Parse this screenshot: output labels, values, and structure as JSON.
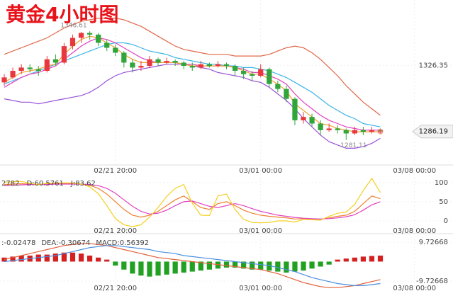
{
  "chart_data": [
    {
      "type": "candlestick",
      "title": "黄金4小时图",
      "x": [
        0,
        1,
        2,
        3,
        4,
        5,
        6,
        7,
        8,
        9,
        10,
        11,
        12,
        13,
        14,
        15,
        16,
        17,
        18,
        19,
        20,
        21,
        22,
        23,
        24,
        25,
        26,
        27,
        28,
        29,
        30,
        31,
        32,
        33,
        34,
        35,
        36,
        37,
        38,
        39,
        40,
        41,
        42,
        43,
        44
      ],
      "ohlc": [
        [
          1316,
          1321,
          1314,
          1319
        ],
        [
          1319,
          1325,
          1318,
          1323
        ],
        [
          1323,
          1327,
          1321,
          1325
        ],
        [
          1325,
          1327,
          1322,
          1324
        ],
        [
          1324,
          1326,
          1320,
          1323
        ],
        [
          1323,
          1332,
          1322,
          1330
        ],
        [
          1330,
          1333,
          1326,
          1328
        ],
        [
          1328,
          1340,
          1327,
          1338
        ],
        [
          1338,
          1345,
          1336,
          1343
        ],
        [
          1343,
          1346.61,
          1340,
          1346
        ],
        [
          1346,
          1347,
          1342,
          1345
        ],
        [
          1345,
          1346,
          1338,
          1340
        ],
        [
          1340,
          1342,
          1335,
          1337
        ],
        [
          1337,
          1339,
          1332,
          1334
        ],
        [
          1334,
          1335,
          1325,
          1328
        ],
        [
          1328,
          1330,
          1322,
          1325
        ],
        [
          1325,
          1329,
          1323,
          1326
        ],
        [
          1326,
          1332,
          1325,
          1330
        ],
        [
          1330,
          1331,
          1326,
          1328
        ],
        [
          1328,
          1331,
          1327,
          1329
        ],
        [
          1329,
          1330,
          1326,
          1328
        ],
        [
          1328,
          1329,
          1324,
          1326
        ],
        [
          1326,
          1328,
          1323,
          1325
        ],
        [
          1325,
          1329,
          1324,
          1327
        ],
        [
          1327,
          1328,
          1325,
          1326
        ],
        [
          1326,
          1329,
          1325,
          1327
        ],
        [
          1327,
          1328,
          1324,
          1326
        ],
        [
          1326,
          1327,
          1320,
          1323
        ],
        [
          1323,
          1325,
          1318,
          1321
        ],
        [
          1321,
          1323,
          1317,
          1320
        ],
        [
          1320,
          1327,
          1319,
          1324
        ],
        [
          1324,
          1325,
          1313,
          1315
        ],
        [
          1315,
          1317,
          1310,
          1312
        ],
        [
          1312,
          1314,
          1304,
          1306
        ],
        [
          1306,
          1307,
          1290,
          1293
        ],
        [
          1293,
          1298,
          1291,
          1295
        ],
        [
          1295,
          1297,
          1289,
          1291
        ],
        [
          1291,
          1293,
          1284,
          1287
        ],
        [
          1287,
          1291,
          1286,
          1288
        ],
        [
          1288,
          1290,
          1285,
          1287
        ],
        [
          1287,
          1288,
          1281.11,
          1285
        ],
        [
          1285,
          1289,
          1284,
          1287
        ],
        [
          1287,
          1289,
          1284,
          1286
        ],
        [
          1286,
          1289,
          1285,
          1287
        ],
        [
          1287,
          1288,
          1285,
          1286.19
        ]
      ],
      "up_color": "#e8383d",
      "down_color": "#2fa53a",
      "series": [
        {
          "color": "#e06848",
          "values": [
            1333,
            1335,
            1337,
            1339,
            1341,
            1343,
            1346,
            1349,
            1351,
            1353,
            1354,
            1355,
            1355,
            1355,
            1354,
            1352,
            1350,
            1347,
            1344,
            1341,
            1338,
            1336,
            1335,
            1334,
            1333,
            1333,
            1333,
            1332,
            1332,
            1332,
            1332,
            1333,
            1335,
            1337,
            1338,
            1337,
            1334,
            1330,
            1325,
            1320,
            1314,
            1309,
            1304,
            1300,
            1296
          ]
        },
        {
          "color": "#3cb4e6",
          "values": [
            1315,
            1317,
            1319,
            1321,
            1323,
            1325,
            1327,
            1329,
            1331,
            1333,
            1335,
            1337,
            1339,
            1340,
            1340,
            1339,
            1337,
            1335,
            1334,
            1333,
            1331,
            1330,
            1329,
            1328,
            1327,
            1327,
            1326,
            1326,
            1325,
            1325,
            1324,
            1323,
            1321,
            1319,
            1316,
            1313,
            1310,
            1306,
            1302,
            1299,
            1296,
            1294,
            1291,
            1290,
            1289
          ]
        },
        {
          "color": "#9a52d8",
          "values": [
            1306,
            1305,
            1304,
            1304,
            1303,
            1304,
            1305,
            1306,
            1307,
            1308,
            1310,
            1313,
            1317,
            1320,
            1322,
            1323,
            1324,
            1325,
            1326,
            1327,
            1327,
            1327,
            1326,
            1325,
            1324,
            1322,
            1321,
            1320,
            1319,
            1317,
            1316,
            1313,
            1309,
            1305,
            1300,
            1294,
            1289,
            1284,
            1280,
            1278,
            1276,
            1276,
            1277,
            1279,
            1282
          ]
        },
        {
          "color": "#e040c0",
          "values": [
            1313,
            1316,
            1319,
            1321,
            1322,
            1324,
            1326,
            1330,
            1334,
            1338,
            1341,
            1343,
            1342,
            1340,
            1337,
            1334,
            1331,
            1329,
            1328,
            1328,
            1328,
            1327,
            1327,
            1326,
            1326,
            1326,
            1326,
            1325,
            1324,
            1322,
            1322,
            1320,
            1318,
            1315,
            1309,
            1304,
            1300,
            1296,
            1293,
            1291,
            1289,
            1288,
            1287,
            1287,
            1287
          ]
        },
        {
          "color": "#f0a030",
          "values": [
            1316,
            1319,
            1322,
            1323,
            1324,
            1326,
            1327,
            1333,
            1338,
            1342,
            1344,
            1343,
            1340,
            1337,
            1333,
            1330,
            1328,
            1328,
            1328,
            1328,
            1328,
            1327,
            1326,
            1326,
            1326,
            1326,
            1326,
            1325,
            1323,
            1321,
            1321,
            1318,
            1315,
            1311,
            1303,
            1299,
            1295,
            1291,
            1290,
            1288,
            1287,
            1286,
            1286,
            1286,
            1286
          ]
        }
      ],
      "xlim": [
        -0.5,
        52.5
      ],
      "xticks": [
        {
          "value": 13,
          "label": "02/21 20:00"
        },
        {
          "value": 30,
          "label": "03/01 00:00"
        },
        {
          "value": 48,
          "label": "03/08 00:00"
        }
      ],
      "ylim": [
        1265,
        1366
      ],
      "yticks": [
        1326.35
      ],
      "high_label": "1346.61",
      "low_label": "1281.11",
      "last_price": 1286.19
    },
    {
      "type": "line",
      "series": [
        {
          "name": "2782",
          "color": "#f08030",
          "values": [
            95,
            96,
            97,
            96,
            95,
            96,
            97,
            97,
            97,
            96,
            93,
            85,
            70,
            50,
            30,
            15,
            10,
            15,
            25,
            40,
            55,
            65,
            50,
            35,
            30,
            45,
            50,
            40,
            28,
            20,
            15,
            12,
            10,
            8,
            5,
            6,
            5,
            4,
            8,
            12,
            15,
            25,
            45,
            65,
            58
          ]
        },
        {
          "name": "D:60.5761",
          "color": "#e040c0",
          "values": [
            92,
            93,
            94,
            95,
            95,
            95,
            96,
            96,
            96,
            96,
            95,
            92,
            85,
            72,
            55,
            38,
            25,
            18,
            20,
            28,
            40,
            50,
            52,
            45,
            38,
            35,
            40,
            45,
            40,
            32,
            25,
            20,
            15,
            12,
            9,
            7,
            6,
            5,
            6,
            8,
            11,
            16,
            28,
            42,
            50
          ]
        },
        {
          "name": "J:83.62",
          "color": "#f5d020",
          "values": [
            101,
            102,
            103,
            98,
            95,
            98,
            99,
            99,
            99,
            96,
            89,
            71,
            40,
            6,
            -10,
            -15,
            -10,
            10,
            35,
            64,
            85,
            95,
            46,
            15,
            14,
            65,
            70,
            30,
            4,
            -4,
            -5,
            -4,
            0,
            0,
            -3,
            4,
            3,
            2,
            12,
            20,
            23,
            43,
            79,
            111,
            74
          ]
        }
      ],
      "xlim": [
        -0.5,
        52.5
      ],
      "xticks": [
        {
          "value": 13,
          "label": "02/21 20:00"
        },
        {
          "value": 30,
          "label": "03/01 00:00"
        },
        {
          "value": 48,
          "label": "03/08 00:00"
        }
      ],
      "ylim": [
        -24,
        133
      ],
      "yticks": [
        0,
        50,
        100
      ]
    },
    {
      "type": "macd",
      "series": [
        {
          "name": ":-0.02478",
          "color": "#e0603a",
          "values": [
            1,
            2,
            3,
            4,
            5,
            6,
            7,
            8,
            8.5,
            9,
            9,
            8.5,
            8,
            7,
            6,
            5,
            4,
            3,
            2,
            1.5,
            1,
            0.5,
            0,
            -0.5,
            -1,
            -1.5,
            -2,
            -2.5,
            -3,
            -3.5,
            -4,
            -5,
            -6,
            -7.5,
            -9,
            -10.5,
            -11.5,
            -12.5,
            -13,
            -13,
            -12.5,
            -12,
            -11,
            -10,
            -9
          ]
        },
        {
          "name": "DEA:-0.30674",
          "color": "#4a8ee0",
          "values": [
            0,
            0.5,
            1,
            1.5,
            2,
            2.5,
            3,
            4,
            5,
            6,
            7,
            7.5,
            8,
            8,
            7.5,
            7,
            6.5,
            6,
            5,
            4.5,
            4,
            3,
            2.5,
            2,
            1.5,
            1,
            0.5,
            0,
            -0.5,
            -1,
            -1.5,
            -2,
            -3,
            -4,
            -5,
            -6.5,
            -8,
            -9,
            -10,
            -11,
            -11.5,
            -12,
            -12,
            -11.5,
            -11
          ]
        },
        {
          "name": "MACD:0.56392",
          "color": "#d040c0",
          "up_color": "#d42020",
          "down_color": "#22a022",
          "values": [
            2,
            2.5,
            3,
            3,
            3.5,
            3.5,
            4,
            4.5,
            4.5,
            4,
            3,
            2,
            1,
            -2,
            -4,
            -6,
            -7,
            -7.5,
            -7,
            -6.5,
            -6,
            -5.5,
            -5,
            -4.5,
            -4,
            -3.5,
            -3,
            -3,
            -3.5,
            -4,
            -4,
            -4.5,
            -5,
            -5.5,
            -5,
            -4.5,
            -3.5,
            -2.5,
            -1.5,
            1,
            1.5,
            2,
            2.5,
            2.8,
            3
          ]
        }
      ],
      "xlim": [
        -0.5,
        52.5
      ],
      "xticks": [
        {
          "value": 13,
          "label": "02/21 20:00"
        },
        {
          "value": 30,
          "label": "03/01 00:00"
        },
        {
          "value": 48,
          "label": "03/08 00:00"
        }
      ],
      "ylim": [
        -14.7,
        12.9
      ],
      "yticks": [
        9.72668,
        -9.72668
      ]
    }
  ]
}
